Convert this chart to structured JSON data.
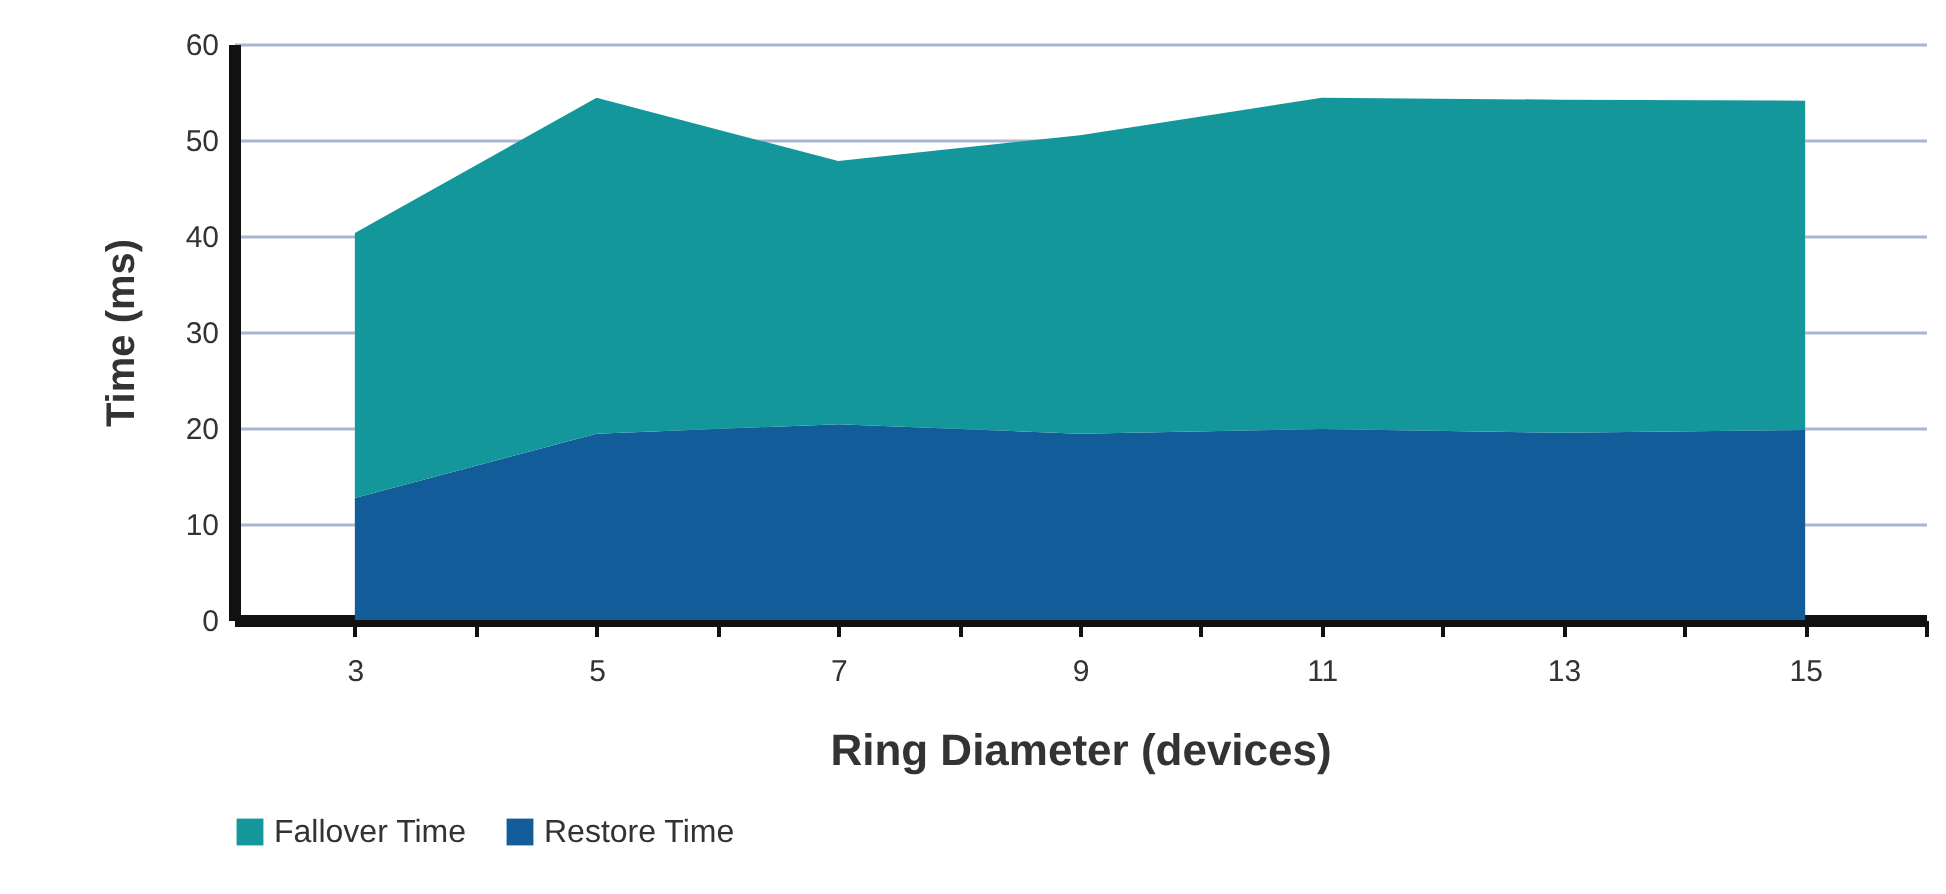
{
  "chart_data": {
    "type": "area",
    "stacked": true,
    "xlabel": "Ring Diameter (devices)",
    "ylabel": "Time (ms)",
    "x": [
      3,
      5,
      7,
      9,
      11,
      13,
      15
    ],
    "series": [
      {
        "name": "Restore Time",
        "color": "#115c99",
        "values": [
          12.7,
          19.4,
          20.4,
          19.4,
          19.9,
          19.5,
          19.8
        ]
      },
      {
        "name": "Fallover Time",
        "color": "#14979b",
        "values": [
          27.6,
          35.0,
          27.4,
          31.1,
          34.5,
          34.7,
          34.3
        ]
      }
    ],
    "xlim": [
      2,
      16
    ],
    "xticks": [
      3,
      {
        "value": 4,
        "label": null
      },
      5,
      {
        "value": 6,
        "label": null
      },
      7,
      {
        "value": 8,
        "label": null
      },
      9,
      {
        "value": 10,
        "label": null
      },
      11,
      {
        "value": 12,
        "label": null
      },
      13,
      {
        "value": 14,
        "label": null
      },
      15,
      {
        "value": 16,
        "label": null
      }
    ],
    "ylim": [
      0,
      60
    ],
    "yticks": [
      0,
      10,
      20,
      30,
      40,
      50,
      60
    ],
    "grid": "y",
    "legend": "bottom"
  }
}
